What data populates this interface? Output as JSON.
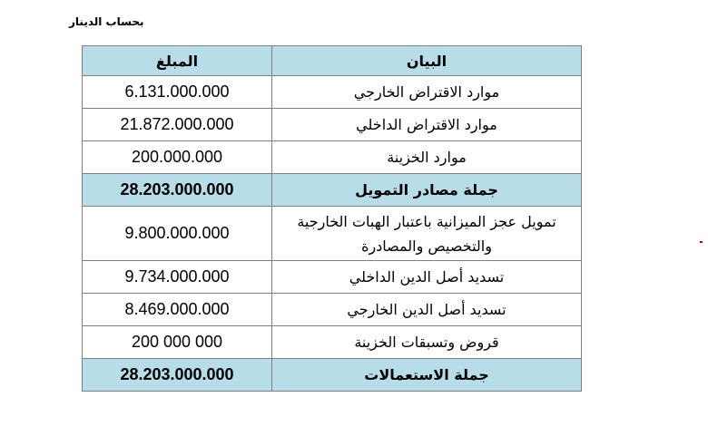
{
  "caption": "بحساب الدينار",
  "table": {
    "header": [
      "البيان",
      "المبلغ"
    ],
    "rows": [
      [
        "موارد الاقتراض الخارجي",
        "6.131.000.000"
      ],
      [
        "موارد الاقتراض الداخلي",
        "21.872.000.000"
      ],
      [
        "موارد الخزينة",
        "200.000.000"
      ],
      [
        "جملة مصادر التمويل",
        "28.203.000.000"
      ],
      [
        "تمويل عجز الميزانية باعتبار الهبات الخارجية والتخصيص والمصادرة",
        "9.800.000.000"
      ],
      [
        "تسديد أصل الدين الداخلي",
        "9.734.000.000"
      ],
      [
        "تسديد أصل الدين  الخارجي",
        "8.469.000.000"
      ],
      [
        "قروض وتسبقات الخزينة",
        "200 000 000"
      ],
      [
        "جملة الاستعمالات",
        "28.203.000.000"
      ]
    ]
  }
}
